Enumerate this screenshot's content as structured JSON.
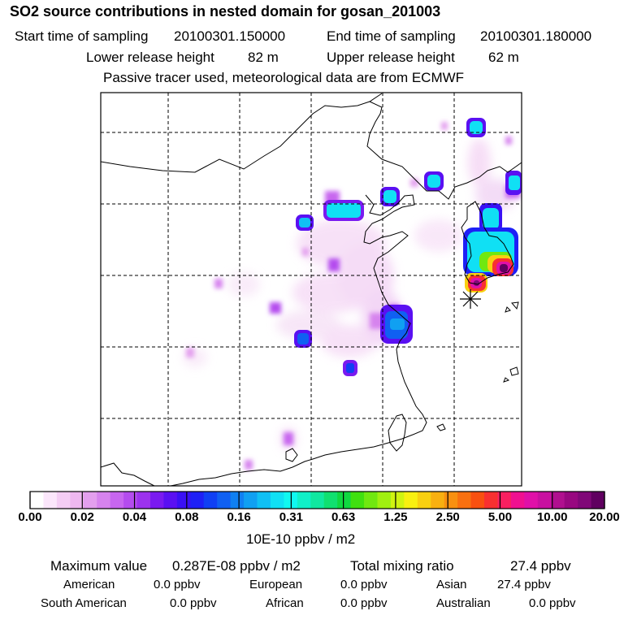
{
  "header": {
    "title": "SO2 source contributions in nested domain for gosan_201003",
    "start_label": "Start time of sampling",
    "start_value": "20100301.150000",
    "end_label": "End time of sampling",
    "end_value": "20100301.180000",
    "lower_label": "Lower release height",
    "lower_value": "82 m",
    "upper_label": "Upper release height",
    "upper_value": "62 m",
    "info": "Passive tracer used, meteorological data are from ECMWF"
  },
  "colorbar": {
    "labels": [
      "0.00",
      "0.02",
      "0.04",
      "0.08",
      "0.16",
      "0.31",
      "0.63",
      "1.25",
      "2.50",
      "5.00",
      "10.00",
      "20.00"
    ],
    "unit": "10E-10 ppbv / m2",
    "colors": [
      "#ffffff",
      "#fbe6fb",
      "#f4cdf4",
      "#eeb8f0",
      "#e39fee",
      "#d683ee",
      "#c766ef",
      "#b44cee",
      "#9c32ee",
      "#7a1af0",
      "#5a10f2",
      "#3a10f4",
      "#1e20f6",
      "#1040f4",
      "#1060f2",
      "#1080f2",
      "#10a0f2",
      "#10c0f4",
      "#10e0f4",
      "#10f8f0",
      "#10f0c8",
      "#10e8a0",
      "#10e070",
      "#10d840",
      "#40e010",
      "#70e810",
      "#a0f010",
      "#d0f410",
      "#f8f010",
      "#f8d010",
      "#f8b010",
      "#f89010",
      "#f87010",
      "#f85010",
      "#f83030",
      "#f82060",
      "#f01090",
      "#e010a8",
      "#c810a0",
      "#b0108f",
      "#980880",
      "#800878",
      "#600060"
    ]
  },
  "summary": {
    "max_label": "Maximum value",
    "max_value": "0.287E-08 ppbv / m2",
    "total_label": "Total mixing ratio",
    "total_value": "27.4 ppbv",
    "regions": [
      {
        "name": "American",
        "value": "0.0 ppbv"
      },
      {
        "name": "European",
        "value": "0.0 ppbv"
      },
      {
        "name": "Asian",
        "value": "27.4 ppbv"
      },
      {
        "name": "South American",
        "value": "0.0 ppbv"
      },
      {
        "name": "African",
        "value": "0.0 ppbv"
      },
      {
        "name": "Australian",
        "value": "0.0 ppbv"
      }
    ]
  }
}
